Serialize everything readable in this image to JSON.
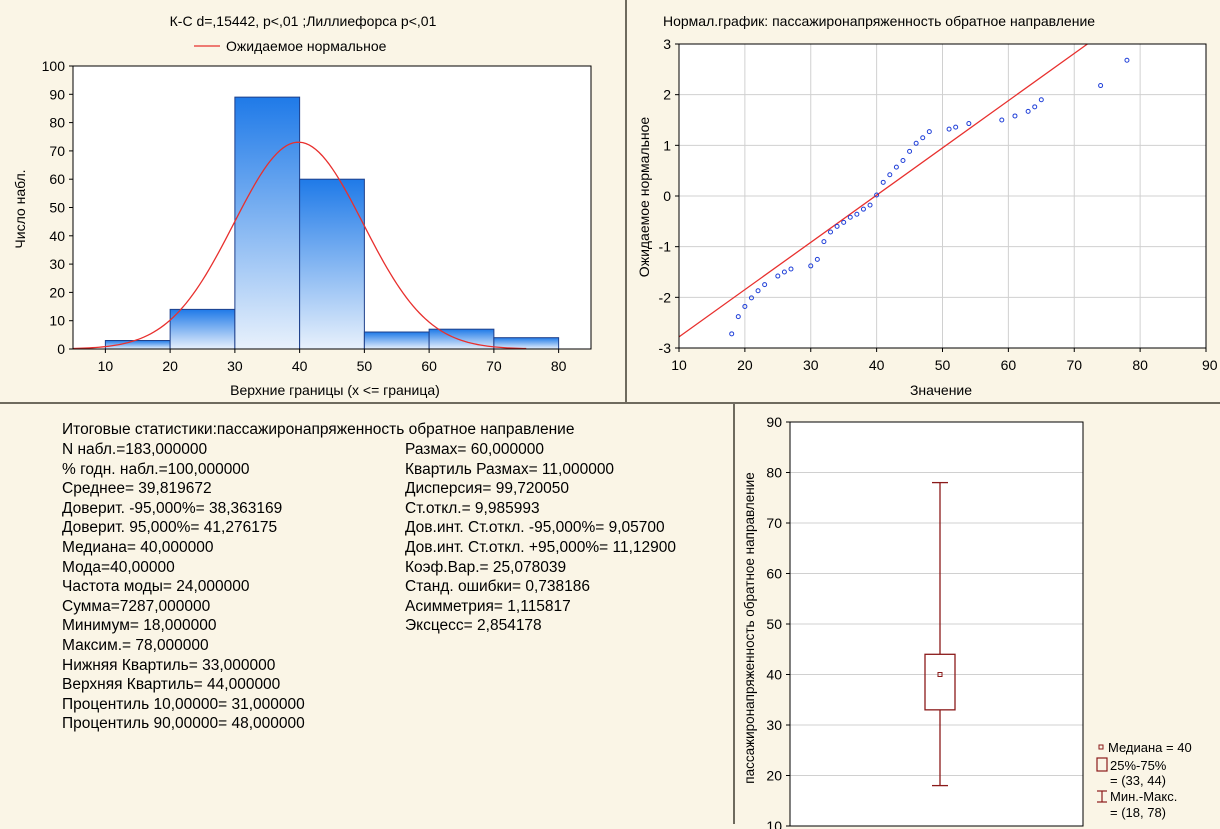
{
  "histogram": {
    "title": "К-С d=,15442, p<,01 ;Лиллиефорса p<,01",
    "legend_label": "Ожидаемое нормальное",
    "xlabel": "Верхние границы (x <= граница)",
    "ylabel": "Число набл.",
    "colors": {
      "bar_top": "#1f7ae8",
      "bar_bottom": "#e8f1fc",
      "curve": "#e8302e",
      "bar_edge": "#1d3f8a"
    }
  },
  "qq": {
    "title": "Нормал.график: пассажиронапряженность обратное направление",
    "xlabel": "Значение",
    "ylabel": "Ожидаемое нормальное",
    "colors": {
      "points": "#1f3fd8",
      "line": "#e8302e"
    }
  },
  "stats": {
    "title": "Итоговые статистики:пассажиронапряженность обратное направление",
    "left": [
      "N набл.=183,000000",
      "% годн. набл.=100,000000",
      "Среднее= 39,819672",
      "Доверит. -95,000%= 38,363169",
      "Доверит. 95,000%= 41,276175",
      "Медиана= 40,000000",
      "Мода=40,00000",
      "Частота моды= 24,000000",
      "Сумма=7287,000000",
      "Минимум= 18,000000",
      "Максим.= 78,000000",
      "Нижняя Квартиль= 33,000000",
      "Верхняя Квартиль= 44,000000",
      "Процентиль 10,00000= 31,000000",
      "Процентиль 90,00000= 48,000000"
    ],
    "right": [
      "Размах= 60,000000",
      "Квартиль Размах= 11,000000",
      "Дисперсия= 99,720050",
      "Ст.откл.= 9,985993",
      "Дов.инт. Ст.откл. -95,000%= 9,05700",
      "Дов.инт. Ст.откл. +95,000%= 11,12900",
      "Коэф.Вар.= 25,078039",
      "Станд. ошибки= 0,738186",
      "Асимметрия= 1,115817",
      "Эксцесс= 2,854178"
    ]
  },
  "boxplot": {
    "ylabel": "пассажиронапряженность обратное направление",
    "legend": [
      "Медиана = 40",
      "25%-75%",
      "= (33, 44)",
      "Мин.-Макс.",
      "= (18, 78)"
    ],
    "colors": {
      "box": "#8b1a1a"
    }
  },
  "chart_data": [
    {
      "type": "bar",
      "title": "К-С d=,15442, p<,01 ;Лиллиефорса p<,01",
      "xlabel": "Верхние границы (x <= граница)",
      "ylabel": "Число набл.",
      "x_ticks": [
        10,
        20,
        30,
        40,
        50,
        60,
        70,
        80
      ],
      "y_ticks": [
        0,
        10,
        20,
        30,
        40,
        50,
        60,
        70,
        80,
        90,
        100
      ],
      "xlim": [
        5,
        85
      ],
      "ylim": [
        0,
        100
      ],
      "bins": [
        {
          "from": 0,
          "to": 10,
          "value": 0
        },
        {
          "from": 10,
          "to": 20,
          "value": 3
        },
        {
          "from": 20,
          "to": 30,
          "value": 14
        },
        {
          "from": 30,
          "to": 40,
          "value": 89
        },
        {
          "from": 40,
          "to": 50,
          "value": 60
        },
        {
          "from": 50,
          "to": 60,
          "value": 6
        },
        {
          "from": 60,
          "to": 70,
          "value": 7
        },
        {
          "from": 70,
          "to": 80,
          "value": 4
        }
      ],
      "series": [
        {
          "name": "Ожидаемое нормальное",
          "type": "normal",
          "mean": 39.82,
          "sd": 9.99,
          "n": 183,
          "bin_width": 10
        }
      ],
      "grid": false,
      "legend": "top"
    },
    {
      "type": "scatter",
      "title": "Нормал.график: пассажиронапряженность обратное направление",
      "xlabel": "Значение",
      "ylabel": "Ожидаемое нормальное",
      "x_ticks": [
        10,
        20,
        30,
        40,
        50,
        60,
        70,
        80,
        90
      ],
      "y_ticks": [
        -3,
        -2,
        -1,
        0,
        1,
        2,
        3
      ],
      "xlim": [
        10,
        90
      ],
      "ylim": [
        -3,
        3
      ],
      "grid": true,
      "points": [
        [
          18,
          -2.72
        ],
        [
          19,
          -2.38
        ],
        [
          20,
          -2.18
        ],
        [
          21,
          -2.01
        ],
        [
          22,
          -1.87
        ],
        [
          23,
          -1.75
        ],
        [
          25,
          -1.58
        ],
        [
          26,
          -1.5
        ],
        [
          27,
          -1.44
        ],
        [
          30,
          -1.38
        ],
        [
          31,
          -1.25
        ],
        [
          32,
          -0.9
        ],
        [
          33,
          -0.71
        ],
        [
          34,
          -0.6
        ],
        [
          35,
          -0.52
        ],
        [
          36,
          -0.42
        ],
        [
          37,
          -0.36
        ],
        [
          38,
          -0.26
        ],
        [
          39,
          -0.18
        ],
        [
          40,
          0.02
        ],
        [
          41,
          0.27
        ],
        [
          42,
          0.42
        ],
        [
          43,
          0.57
        ],
        [
          44,
          0.7
        ],
        [
          45,
          0.88
        ],
        [
          46,
          1.04
        ],
        [
          47,
          1.15
        ],
        [
          48,
          1.27
        ],
        [
          51,
          1.32
        ],
        [
          52,
          1.36
        ],
        [
          54,
          1.43
        ],
        [
          59,
          1.5
        ],
        [
          61,
          1.58
        ],
        [
          63,
          1.67
        ],
        [
          64,
          1.76
        ],
        [
          65,
          1.9
        ],
        [
          74,
          2.18
        ],
        [
          78,
          2.68
        ]
      ],
      "fit_line": [
        [
          10,
          -2.78
        ],
        [
          72,
          3.0
        ]
      ]
    },
    {
      "type": "box",
      "ylabel": "пассажиронапряженность обратное направление",
      "y_ticks": [
        10,
        20,
        30,
        40,
        50,
        60,
        70,
        80,
        90
      ],
      "ylim": [
        10,
        90
      ],
      "grid": true,
      "median": 40,
      "q1": 33,
      "q3": 44,
      "min": 18,
      "max": 78,
      "legend": "right"
    }
  ]
}
